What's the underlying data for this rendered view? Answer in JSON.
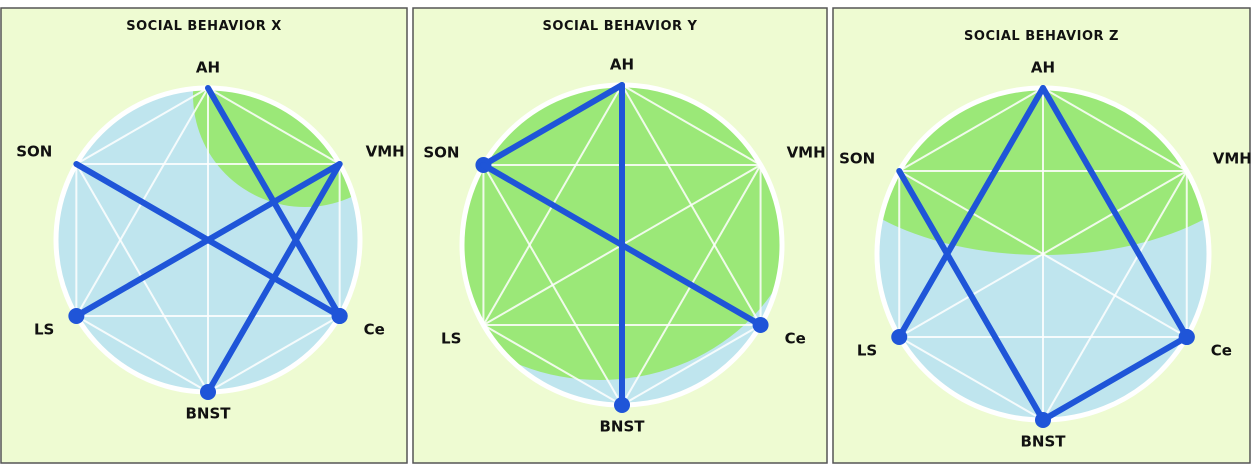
{
  "panels": [
    {
      "title": "SOCIAL BEHAVIOR X",
      "nodes": [
        {
          "label": "AH"
        },
        {
          "label": "VMH"
        },
        {
          "label": "Ce"
        },
        {
          "label": "BNST"
        },
        {
          "label": "LS"
        },
        {
          "label": "SON"
        }
      ]
    },
    {
      "title": "SOCIAL BEHAVIOR Y",
      "nodes": [
        {
          "label": "AH"
        },
        {
          "label": "VMH"
        },
        {
          "label": "Ce"
        },
        {
          "label": "BNST"
        },
        {
          "label": "LS"
        },
        {
          "label": "SON"
        }
      ]
    },
    {
      "title": "SOCIAL BEHAVIOR Z",
      "nodes": [
        {
          "label": "AH"
        },
        {
          "label": "VMH"
        },
        {
          "label": "Ce"
        },
        {
          "label": "BNST"
        },
        {
          "label": "LS"
        },
        {
          "label": "SON"
        }
      ]
    }
  ]
}
